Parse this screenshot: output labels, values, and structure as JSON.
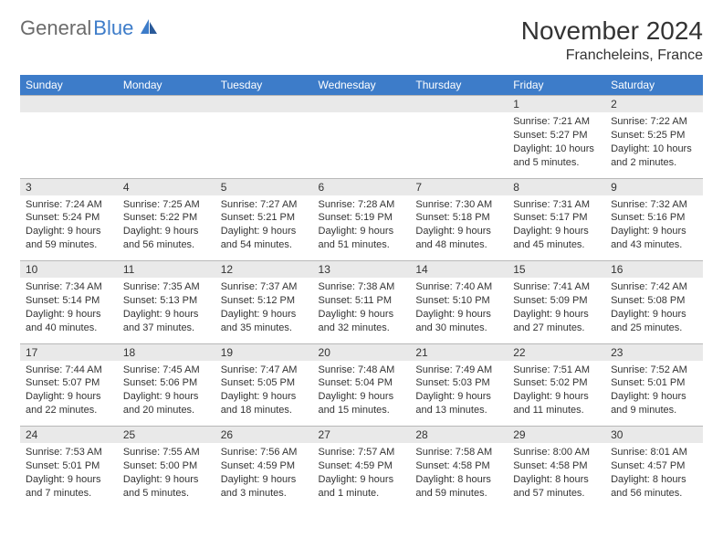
{
  "brand": {
    "part1": "General",
    "part2": "Blue"
  },
  "title": "November 2024",
  "location": "Francheleins, France",
  "colors": {
    "header_bg": "#3d7cc9",
    "header_text": "#ffffff",
    "daynum_bg": "#e9e9e9",
    "border": "#b8b8b8",
    "text": "#333333",
    "brand_gray": "#6b6b6b",
    "brand_blue": "#3d7cc9"
  },
  "day_labels": [
    "Sunday",
    "Monday",
    "Tuesday",
    "Wednesday",
    "Thursday",
    "Friday",
    "Saturday"
  ],
  "weeks": [
    {
      "nums": [
        "",
        "",
        "",
        "",
        "",
        "1",
        "2"
      ],
      "cells": [
        null,
        null,
        null,
        null,
        null,
        {
          "sunrise": "Sunrise: 7:21 AM",
          "sunset": "Sunset: 5:27 PM",
          "daylight": "Daylight: 10 hours and 5 minutes."
        },
        {
          "sunrise": "Sunrise: 7:22 AM",
          "sunset": "Sunset: 5:25 PM",
          "daylight": "Daylight: 10 hours and 2 minutes."
        }
      ]
    },
    {
      "nums": [
        "3",
        "4",
        "5",
        "6",
        "7",
        "8",
        "9"
      ],
      "cells": [
        {
          "sunrise": "Sunrise: 7:24 AM",
          "sunset": "Sunset: 5:24 PM",
          "daylight": "Daylight: 9 hours and 59 minutes."
        },
        {
          "sunrise": "Sunrise: 7:25 AM",
          "sunset": "Sunset: 5:22 PM",
          "daylight": "Daylight: 9 hours and 56 minutes."
        },
        {
          "sunrise": "Sunrise: 7:27 AM",
          "sunset": "Sunset: 5:21 PM",
          "daylight": "Daylight: 9 hours and 54 minutes."
        },
        {
          "sunrise": "Sunrise: 7:28 AM",
          "sunset": "Sunset: 5:19 PM",
          "daylight": "Daylight: 9 hours and 51 minutes."
        },
        {
          "sunrise": "Sunrise: 7:30 AM",
          "sunset": "Sunset: 5:18 PM",
          "daylight": "Daylight: 9 hours and 48 minutes."
        },
        {
          "sunrise": "Sunrise: 7:31 AM",
          "sunset": "Sunset: 5:17 PM",
          "daylight": "Daylight: 9 hours and 45 minutes."
        },
        {
          "sunrise": "Sunrise: 7:32 AM",
          "sunset": "Sunset: 5:16 PM",
          "daylight": "Daylight: 9 hours and 43 minutes."
        }
      ]
    },
    {
      "nums": [
        "10",
        "11",
        "12",
        "13",
        "14",
        "15",
        "16"
      ],
      "cells": [
        {
          "sunrise": "Sunrise: 7:34 AM",
          "sunset": "Sunset: 5:14 PM",
          "daylight": "Daylight: 9 hours and 40 minutes."
        },
        {
          "sunrise": "Sunrise: 7:35 AM",
          "sunset": "Sunset: 5:13 PM",
          "daylight": "Daylight: 9 hours and 37 minutes."
        },
        {
          "sunrise": "Sunrise: 7:37 AM",
          "sunset": "Sunset: 5:12 PM",
          "daylight": "Daylight: 9 hours and 35 minutes."
        },
        {
          "sunrise": "Sunrise: 7:38 AM",
          "sunset": "Sunset: 5:11 PM",
          "daylight": "Daylight: 9 hours and 32 minutes."
        },
        {
          "sunrise": "Sunrise: 7:40 AM",
          "sunset": "Sunset: 5:10 PM",
          "daylight": "Daylight: 9 hours and 30 minutes."
        },
        {
          "sunrise": "Sunrise: 7:41 AM",
          "sunset": "Sunset: 5:09 PM",
          "daylight": "Daylight: 9 hours and 27 minutes."
        },
        {
          "sunrise": "Sunrise: 7:42 AM",
          "sunset": "Sunset: 5:08 PM",
          "daylight": "Daylight: 9 hours and 25 minutes."
        }
      ]
    },
    {
      "nums": [
        "17",
        "18",
        "19",
        "20",
        "21",
        "22",
        "23"
      ],
      "cells": [
        {
          "sunrise": "Sunrise: 7:44 AM",
          "sunset": "Sunset: 5:07 PM",
          "daylight": "Daylight: 9 hours and 22 minutes."
        },
        {
          "sunrise": "Sunrise: 7:45 AM",
          "sunset": "Sunset: 5:06 PM",
          "daylight": "Daylight: 9 hours and 20 minutes."
        },
        {
          "sunrise": "Sunrise: 7:47 AM",
          "sunset": "Sunset: 5:05 PM",
          "daylight": "Daylight: 9 hours and 18 minutes."
        },
        {
          "sunrise": "Sunrise: 7:48 AM",
          "sunset": "Sunset: 5:04 PM",
          "daylight": "Daylight: 9 hours and 15 minutes."
        },
        {
          "sunrise": "Sunrise: 7:49 AM",
          "sunset": "Sunset: 5:03 PM",
          "daylight": "Daylight: 9 hours and 13 minutes."
        },
        {
          "sunrise": "Sunrise: 7:51 AM",
          "sunset": "Sunset: 5:02 PM",
          "daylight": "Daylight: 9 hours and 11 minutes."
        },
        {
          "sunrise": "Sunrise: 7:52 AM",
          "sunset": "Sunset: 5:01 PM",
          "daylight": "Daylight: 9 hours and 9 minutes."
        }
      ]
    },
    {
      "nums": [
        "24",
        "25",
        "26",
        "27",
        "28",
        "29",
        "30"
      ],
      "cells": [
        {
          "sunrise": "Sunrise: 7:53 AM",
          "sunset": "Sunset: 5:01 PM",
          "daylight": "Daylight: 9 hours and 7 minutes."
        },
        {
          "sunrise": "Sunrise: 7:55 AM",
          "sunset": "Sunset: 5:00 PM",
          "daylight": "Daylight: 9 hours and 5 minutes."
        },
        {
          "sunrise": "Sunrise: 7:56 AM",
          "sunset": "Sunset: 4:59 PM",
          "daylight": "Daylight: 9 hours and 3 minutes."
        },
        {
          "sunrise": "Sunrise: 7:57 AM",
          "sunset": "Sunset: 4:59 PM",
          "daylight": "Daylight: 9 hours and 1 minute."
        },
        {
          "sunrise": "Sunrise: 7:58 AM",
          "sunset": "Sunset: 4:58 PM",
          "daylight": "Daylight: 8 hours and 59 minutes."
        },
        {
          "sunrise": "Sunrise: 8:00 AM",
          "sunset": "Sunset: 4:58 PM",
          "daylight": "Daylight: 8 hours and 57 minutes."
        },
        {
          "sunrise": "Sunrise: 8:01 AM",
          "sunset": "Sunset: 4:57 PM",
          "daylight": "Daylight: 8 hours and 56 minutes."
        }
      ]
    }
  ]
}
